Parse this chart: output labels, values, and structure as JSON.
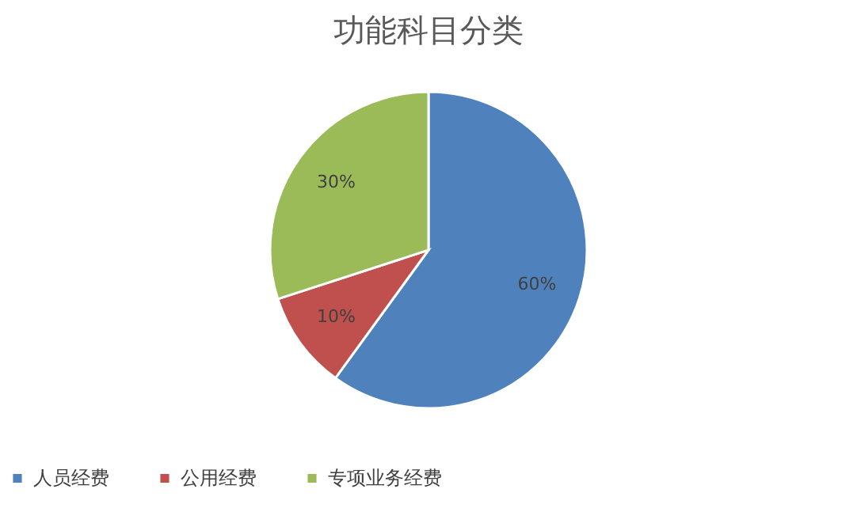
{
  "chart_data": {
    "type": "pie",
    "title": "功能科目分类",
    "categories": [
      "人员经费",
      "公用经费",
      "专项业务经费"
    ],
    "values": [
      60,
      10,
      30
    ],
    "colors": [
      "#4f81bd",
      "#c0504d",
      "#9bbb59"
    ],
    "value_labels": [
      "60%",
      "10%",
      "30%"
    ],
    "legend": "bottom"
  }
}
